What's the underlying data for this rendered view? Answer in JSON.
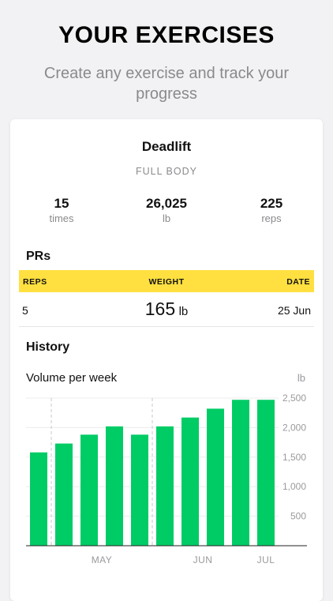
{
  "headline": "YOUR EXERCISES",
  "subheadline": "Create any exercise and track your progress",
  "exercise": {
    "name": "Deadlift",
    "category": "FULL BODY"
  },
  "stats": [
    {
      "value": "15",
      "unit": "times"
    },
    {
      "value": "26,025",
      "unit": "lb"
    },
    {
      "value": "225",
      "unit": "reps"
    }
  ],
  "prs": {
    "title": "PRs",
    "headers": {
      "reps": "REPS",
      "weight": "WEIGHT",
      "date": "DATE"
    },
    "row": {
      "reps": "5",
      "weight": "165",
      "weight_unit": "lb",
      "date": "25 Jun"
    },
    "header_color": "#ffe040"
  },
  "history": {
    "title": "History",
    "chart_title": "Volume per week",
    "unit": "lb"
  },
  "chart_data": {
    "type": "bar",
    "title": "Volume per week",
    "ylabel": "lb",
    "color": "#00cc66",
    "values": [
      1580,
      1730,
      1880,
      2020,
      1880,
      2020,
      2170,
      2320,
      2470,
      2470
    ],
    "ylim": [
      0,
      2500
    ],
    "yticks": [
      500,
      1000,
      1500,
      2000,
      2500
    ],
    "ytick_labels": [
      "500",
      "1,000",
      "1,500",
      "2,000",
      "2,500"
    ],
    "month_labels": [
      {
        "label": "MAY",
        "index": 2.5
      },
      {
        "label": "JUN",
        "index": 6.5
      },
      {
        "label": "JUL",
        "index": 9
      }
    ],
    "month_dividers": [
      1,
      5
    ]
  }
}
